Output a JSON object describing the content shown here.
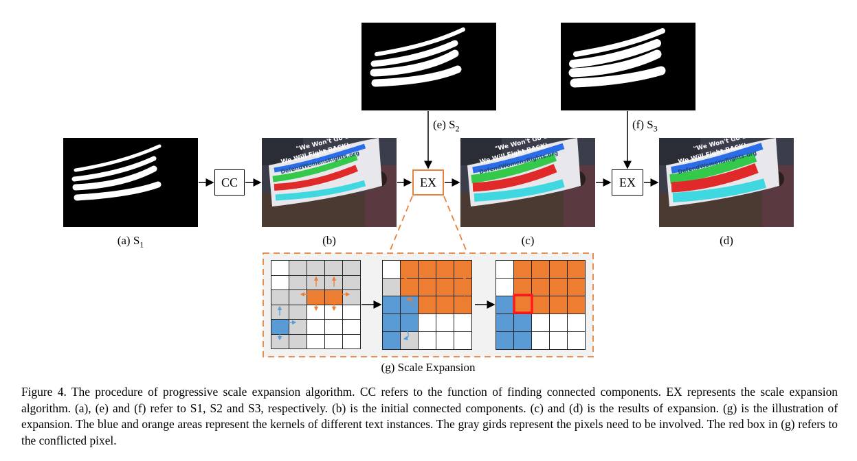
{
  "labels": {
    "a": "(a) S",
    "a_sub": "1",
    "b": "(b)",
    "c": "(c)",
    "d": "(d)",
    "e": "(e) S",
    "e_sub": "2",
    "f": "(f) S",
    "f_sub": "3",
    "g": "(g) Scale Expansion"
  },
  "boxes": {
    "cc": "CC",
    "ex1": "EX",
    "ex2": "EX"
  },
  "photo_text": {
    "line1": "\"We Won't Go Back\"",
    "line2": "We Will Fight BACK!",
    "line3": "DefendWomensRights.org"
  },
  "grids": {
    "g1": [
      "w",
      "g",
      "g",
      "g",
      "g",
      "w",
      "g",
      "g",
      "g",
      "g",
      "g",
      "g",
      "o",
      "o",
      "g",
      "g",
      "g",
      "w",
      "w",
      "w",
      "b",
      "g",
      "w",
      "w",
      "w",
      "g",
      "g",
      "w",
      "w",
      "w"
    ],
    "g2": [
      "w",
      "o",
      "o",
      "o",
      "o",
      "g",
      "o",
      "o",
      "o",
      "o",
      "b",
      "b",
      "o",
      "o",
      "o",
      "b",
      "b",
      "w",
      "w",
      "w",
      "b",
      "g",
      "w",
      "w",
      "w"
    ],
    "g3": [
      "w",
      "o",
      "o",
      "o",
      "o",
      "w",
      "o",
      "o",
      "o",
      "o",
      "b",
      "o",
      "o",
      "o",
      "o",
      "b",
      "b",
      "w",
      "w",
      "w",
      "b",
      "b",
      "w",
      "w",
      "w"
    ]
  },
  "colors": {
    "orange": "#ed7d31",
    "blue": "#5b9bd5",
    "gray": "#d4d4d4",
    "conflict": "#ff1a1a",
    "dash": "#e8823a"
  },
  "caption": "Figure 4. The procedure of progressive scale expansion algorithm. CC refers to the function of finding connected components. EX represents the scale expansion algorithm. (a), (e) and (f) refer to S1, S2 and S3, respectively. (b) is the initial connected components. (c) and (d) is the results of expansion. (g) is the illustration of expansion. The blue and orange areas represent the kernels of different text instances. The gray girds represent the pixels need to be involved. The red box in (g) refers to the conflicted pixel."
}
